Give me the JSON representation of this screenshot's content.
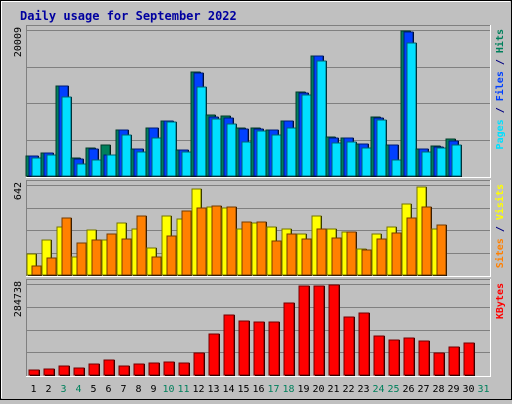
{
  "chart_data": {
    "type": "bar",
    "title": "Daily usage for September 2022",
    "categories": [
      "1",
      "2",
      "3",
      "4",
      "5",
      "6",
      "7",
      "8",
      "9",
      "10",
      "11",
      "12",
      "13",
      "14",
      "15",
      "16",
      "17",
      "18",
      "19",
      "20",
      "21",
      "22",
      "23",
      "24",
      "25",
      "26",
      "27",
      "28",
      "29",
      "30",
      "31"
    ],
    "weekend_days": [
      "3",
      "4",
      "10",
      "11",
      "17",
      "18",
      "24",
      "25",
      "31"
    ],
    "panels": [
      {
        "id": "hits-files-pages",
        "max_label": "20009",
        "ylim": [
          0,
          20009
        ],
        "axis_labels": [
          {
            "text": "Pages",
            "color": "#00e0ff"
          },
          {
            "text": " / ",
            "color": "#000080"
          },
          {
            "text": "Files",
            "color": "#0040ff"
          },
          {
            "text": " / ",
            "color": "#000080"
          },
          {
            "text": "Hits",
            "color": "#00805c"
          }
        ],
        "series": [
          {
            "name": "Hits",
            "color": "#00805c",
            "values": [
              2800,
              3200,
              12400,
              2400,
              3800,
              4300,
              6300,
              3700,
              6600,
              7600,
              3500,
              14200,
              8400,
              8200,
              6600,
              6600,
              6300,
              7600,
              11500,
              16500,
              5300,
              5200,
              4400,
              8100,
              4300,
              19900,
              3700,
              4100,
              5100,
              0,
              0
            ]
          },
          {
            "name": "Files",
            "color": "#0040ff",
            "values": [
              2800,
              3200,
              12300,
              2300,
              3700,
              2900,
              6300,
              3700,
              6600,
              7500,
              3500,
              14100,
              8100,
              8000,
              6500,
              6500,
              6300,
              7500,
              11400,
              16500,
              5200,
              5200,
              4400,
              8000,
              4200,
              19800,
              3700,
              4000,
              4800,
              0,
              0
            ]
          },
          {
            "name": "Pages",
            "color": "#00e0ff",
            "values": [
              2500,
              2900,
              10800,
              1600,
              2200,
              2900,
              5600,
              3300,
              5200,
              7400,
              3300,
              12200,
              7800,
              7100,
              4600,
              6200,
              5600,
              6600,
              11100,
              15800,
              4500,
              4600,
              3800,
              7700,
              2200,
              18200,
              3300,
              3800,
              4200,
              0,
              0
            ]
          }
        ]
      },
      {
        "id": "visits-sites",
        "max_label": "642",
        "ylim": [
          0,
          642
        ],
        "axis_labels": [
          {
            "text": "Sites",
            "color": "#ff8000"
          },
          {
            "text": " / ",
            "color": "#000080"
          },
          {
            "text": "Visits",
            "color": "#ffff00"
          }
        ],
        "series": [
          {
            "name": "Visits",
            "color": "#ffff00",
            "values": [
              150,
              250,
              340,
              130,
              320,
              250,
              370,
              330,
              190,
              420,
              400,
              615,
              485,
              480,
              330,
              370,
              340,
              330,
              290,
              420,
              330,
              305,
              185,
              290,
              345,
              508,
              625,
              330,
              0,
              0,
              0
            ]
          },
          {
            "name": "Sites",
            "color": "#ff8000",
            "values": [
              65,
              120,
              410,
              230,
              250,
              290,
              260,
              420,
              125,
              280,
              455,
              475,
              490,
              485,
              380,
              375,
              245,
              290,
              260,
              325,
              265,
              305,
              180,
              255,
              300,
              405,
              485,
              360,
              0,
              0,
              0
            ]
          }
        ]
      },
      {
        "id": "kbytes",
        "max_label": "284738",
        "ylim": [
          0,
          284738
        ],
        "axis_labels": [
          {
            "text": "KBytes",
            "color": "#ff0000"
          }
        ],
        "series": [
          {
            "name": "KBytes",
            "color": "#ff0000",
            "values": [
              15600,
              19200,
              27000,
              21000,
              34800,
              45600,
              28800,
              34200,
              37800,
              40800,
              38400,
              69600,
              127200,
              187800,
              168600,
              164400,
              166200,
              225600,
              278400,
              278400,
              281400,
              182400,
              194400,
              120600,
              111000,
              116400,
              106800,
              69000,
              88200,
              101400,
              0
            ]
          }
        ]
      }
    ]
  }
}
